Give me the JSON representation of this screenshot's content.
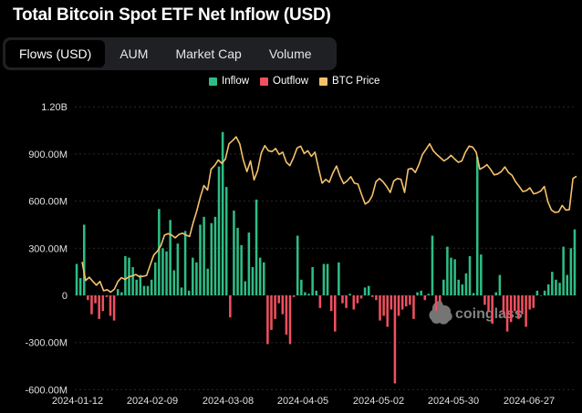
{
  "title": "Total Bitcoin Spot ETF Net Inflow (USD)",
  "tabs": [
    {
      "label": "Flows (USD)",
      "active": true
    },
    {
      "label": "AUM",
      "active": false
    },
    {
      "label": "Market Cap",
      "active": false
    },
    {
      "label": "Volume",
      "active": false
    }
  ],
  "legend": [
    {
      "label": "Inflow",
      "color": "#2ebd85"
    },
    {
      "label": "Outflow",
      "color": "#f0505f"
    },
    {
      "label": "BTC Price",
      "color": "#f5c26b"
    }
  ],
  "watermark": "coinglass",
  "chart_data": {
    "type": "bar",
    "title": "Total Bitcoin Spot ETF Net Inflow (USD)",
    "xlabel": "",
    "ylabel": "",
    "ylim": [
      -700000000,
      1200000000
    ],
    "y_ticks": [
      {
        "value": 1200000000,
        "label": "1.20B"
      },
      {
        "value": 900000000,
        "label": "900.00M"
      },
      {
        "value": 600000000,
        "label": "600.00M"
      },
      {
        "value": 300000000,
        "label": "300.00M"
      },
      {
        "value": 0,
        "label": "0"
      },
      {
        "value": -300000000,
        "label": "-300.00M"
      },
      {
        "value": -600000000,
        "label": "-600.00M"
      }
    ],
    "x_ticks": [
      "2024-01-12",
      "2024-02-09",
      "2024-03-08",
      "2024-04-05",
      "2024-05-02",
      "2024-05-30",
      "2024-06-27"
    ],
    "grid": "horizontal",
    "legend_position": "top-center",
    "series": [
      {
        "name": "Flows",
        "values": [
          200,
          110,
          450,
          -30,
          -120,
          -50,
          -150,
          -100,
          -10,
          -130,
          -160,
          40,
          20,
          250,
          240,
          180,
          100,
          130,
          60,
          60,
          100,
          210,
          550,
          300,
          280,
          480,
          160,
          330,
          50,
          410,
          30,
          240,
          210,
          450,
          500,
          170,
          460,
          500,
          820,
          1040,
          690,
          -140,
          540,
          430,
          320,
          90,
          400,
          180,
          610,
          240,
          210,
          -310,
          -220,
          -150,
          -50,
          -120,
          -250,
          -310,
          -10,
          380,
          100,
          20,
          10,
          180,
          30,
          -80,
          200,
          200,
          -100,
          -230,
          210,
          -50,
          -80,
          10,
          -90,
          -50,
          -20,
          50,
          60,
          -10,
          -30,
          -160,
          -130,
          -200,
          -90,
          -560,
          -130,
          -90,
          -70,
          -60,
          -150,
          20,
          30,
          -30,
          10,
          380,
          -100,
          -40,
          100,
          310,
          240,
          230,
          100,
          70,
          140,
          250,
          15,
          880,
          260,
          -60,
          -100,
          -180,
          20,
          130,
          -120,
          -230,
          -170,
          -100,
          -150,
          -120,
          -200,
          -90,
          -80,
          30,
          0,
          30,
          70,
          150,
          100,
          80,
          310,
          130,
          300,
          420
        ]
      },
      {
        "name": "BTC Price",
        "values": [
          46000,
          42000,
          42700,
          41800,
          41000,
          41800,
          39800,
          40000,
          39500,
          40100,
          41800,
          42600,
          42200,
          42800,
          43000,
          43300,
          42800,
          42900,
          43100,
          45300,
          47500,
          48300,
          49500,
          51800,
          52100,
          51800,
          51200,
          51900,
          52200,
          51800,
          51500,
          54500,
          57000,
          60000,
          62500,
          61500,
          66000,
          66800,
          68000,
          67300,
          68200,
          71500,
          72200,
          73000,
          71500,
          68000,
          65500,
          67800,
          63700,
          65700,
          69500,
          71100,
          70000,
          69800,
          70500,
          69200,
          69700,
          67500,
          66800,
          68500,
          70600,
          71000,
          69400,
          70000,
          68800,
          69700,
          66200,
          63000,
          63800,
          63200,
          65200,
          66700,
          64500,
          62900,
          63500,
          64400,
          63000,
          62800,
          60600,
          58500,
          59000,
          60300,
          63300,
          64000,
          63300,
          62300,
          61000,
          63500,
          64000,
          63800,
          61000,
          66000,
          66200,
          65300,
          67000,
          69200,
          70300,
          71500,
          70000,
          69200,
          68500,
          67800,
          68300,
          69000,
          68200,
          67500,
          67800,
          69700,
          71000,
          70800,
          69700,
          66000,
          66400,
          67000,
          66000,
          64800,
          65000,
          65500,
          66500,
          65300,
          64700,
          63300,
          62300,
          61200,
          61400,
          62000,
          60700,
          60900,
          61300,
          62300,
          59000,
          57200,
          56700,
          56800,
          58200,
          57200,
          57300,
          64000,
          64500
        ]
      }
    ]
  }
}
